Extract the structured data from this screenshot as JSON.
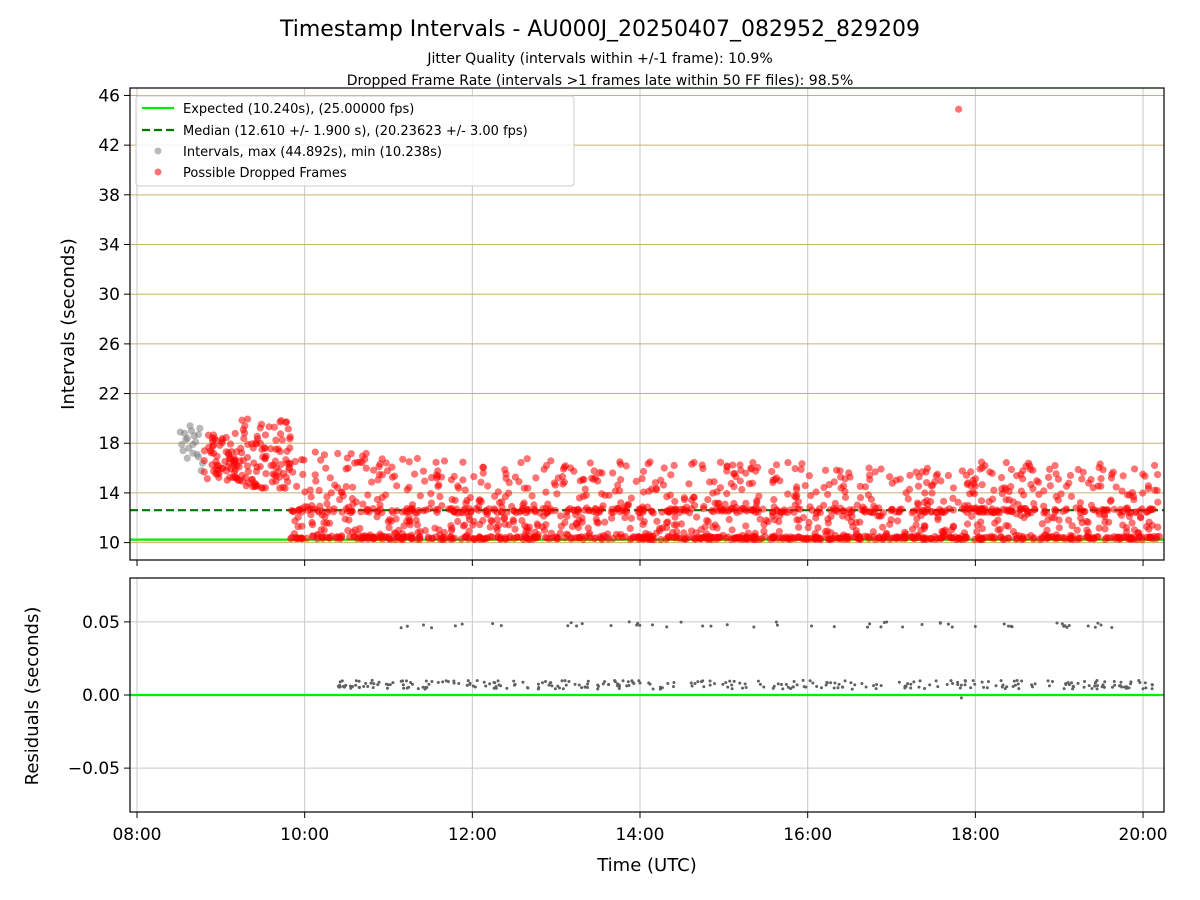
{
  "figure": {
    "title": "Timestamp Intervals - AU000J_20250407_082952_829209",
    "subtitle_1": "Jitter Quality (intervals within +/-1 frame): 10.9%",
    "subtitle_2": "Dropped Frame Rate (intervals >1 frames late within 50 FF files): 98.5%"
  },
  "colors": {
    "expected": "#00ee00",
    "median": "#007700",
    "intervals": "#808080",
    "dropped": "#ff0000",
    "grid_top": "#c8b070",
    "grid_vert": "#c8c8c8",
    "residual_points": "#606060"
  },
  "chart_data": [
    {
      "type": "scatter",
      "name": "intervals",
      "xlabel": "",
      "ylabel": "Intervals (seconds)",
      "xlim": [
        "07:55",
        "20:15"
      ],
      "ylim": [
        8.6,
        46.6
      ],
      "y_ticks": [
        10,
        14,
        18,
        22,
        26,
        30,
        34,
        38,
        42,
        46
      ],
      "x_ticks": [
        "08:00",
        "10:00",
        "12:00",
        "14:00",
        "16:00",
        "18:00",
        "20:00"
      ],
      "grid": true,
      "legend_position": "top-left",
      "legend": [
        "Expected (10.240s), (25.00000 fps)",
        "Median (12.610 +/- 1.900 s), (20.23623 +/- 3.00 fps)",
        "Intervals, max (44.892s), min (10.238s)",
        "Possible Dropped Frames"
      ],
      "series": [
        {
          "name": "Expected (10.240s), (25.00000 fps)",
          "kind": "hline",
          "y": 10.24
        },
        {
          "name": "Median (12.610 +/- 1.900 s), (20.23623 +/- 3.00 fps)",
          "kind": "hline-dashed",
          "y": 12.61
        },
        {
          "name": "Intervals, max (44.892s), min (10.238s)",
          "kind": "points",
          "x": [
            "08:31",
            "08:33",
            "08:35",
            "08:36",
            "08:38",
            "08:40",
            "08:41",
            "08:43",
            "08:45",
            "08:47",
            "08:32",
            "08:34",
            "08:37",
            "08:39",
            "08:42",
            "08:44",
            "08:46",
            "08:36",
            "08:40",
            "08:44"
          ],
          "y": [
            18.9,
            17.4,
            18.3,
            16.8,
            19.4,
            17.9,
            18.6,
            17.1,
            19.2,
            16.4,
            17.9,
            18.8,
            17.6,
            19.0,
            18.1,
            16.9,
            15.8,
            18.4,
            17.2,
            18.7
          ]
        },
        {
          "name": "Possible Dropped Frames",
          "kind": "points",
          "outlier": {
            "x": "17:48",
            "y": 44.89
          },
          "segments": [
            {
              "from": "08:48",
              "to": "09:15",
              "ymin": 15.0,
              "ymax": 18.8
            },
            {
              "from": "09:15",
              "to": "09:50",
              "ymin": 14.3,
              "ymax": 20.0
            },
            {
              "from": "09:50",
              "to": "11:00",
              "ymin": 10.3,
              "ymax": 17.5
            },
            {
              "from": "11:00",
              "to": "13:00",
              "ymin": 10.25,
              "ymax": 16.8
            },
            {
              "from": "13:00",
              "to": "16:00",
              "ymin": 10.25,
              "ymax": 16.5
            },
            {
              "from": "16:00",
              "to": "18:00",
              "ymin": 10.25,
              "ymax": 16.0
            },
            {
              "from": "18:00",
              "to": "20:12",
              "ymin": 10.25,
              "ymax": 16.5
            }
          ]
        }
      ]
    },
    {
      "type": "scatter",
      "name": "residuals",
      "xlabel": "Time (UTC)",
      "ylabel": "Residuals (seconds)",
      "xlim": [
        "07:55",
        "20:15"
      ],
      "ylim": [
        -0.08,
        0.08
      ],
      "y_ticks": [
        0.05,
        0.0,
        -0.05
      ],
      "y_tick_labels": [
        "0.05",
        "0.00",
        "−0.05"
      ],
      "x_ticks": [
        "08:00",
        "10:00",
        "12:00",
        "14:00",
        "16:00",
        "18:00",
        "20:00"
      ],
      "grid": true,
      "series": [
        {
          "name": "expected",
          "kind": "hline",
          "y": 0.0
        },
        {
          "name": "residuals",
          "kind": "points",
          "upper_band": {
            "from": "10:50",
            "to": "19:40",
            "ymin": 0.046,
            "ymax": 0.05
          },
          "lower_band": {
            "from": "10:22",
            "to": "20:12",
            "ymin": 0.004,
            "ymax": 0.01
          },
          "extra": [
            {
              "x": "17:50",
              "y": -0.002
            }
          ]
        }
      ]
    }
  ]
}
